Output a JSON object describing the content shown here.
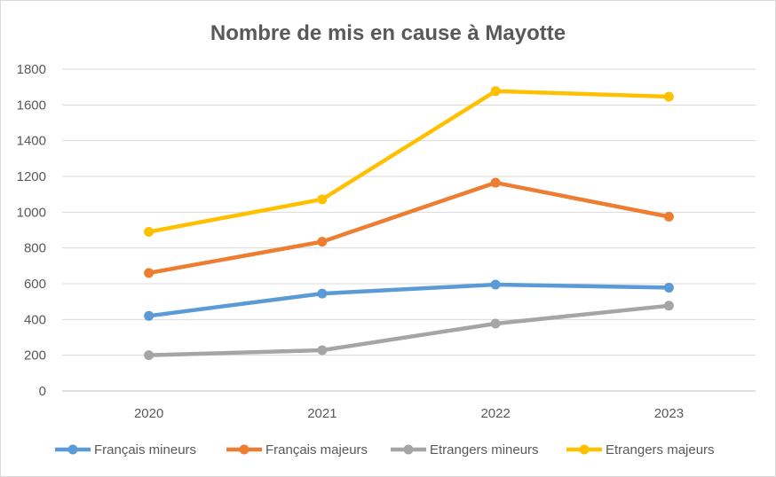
{
  "chart_data": {
    "type": "line",
    "title": "Nombre de mis en cause à Mayotte",
    "categories": [
      "2020",
      "2021",
      "2022",
      "2023"
    ],
    "ylim": [
      0,
      1800
    ],
    "yticks": [
      "0",
      "200",
      "400",
      "600",
      "800",
      "1000",
      "1200",
      "1400",
      "1600",
      "1800"
    ],
    "grid": true,
    "legend_position": "bottom",
    "series": [
      {
        "name": "Français mineurs",
        "color": "#5b9bd5",
        "values": [
          420,
          545,
          595,
          578
        ]
      },
      {
        "name": "Français majeurs",
        "color": "#ed7d31",
        "values": [
          660,
          835,
          1165,
          975
        ]
      },
      {
        "name": "Etrangers mineurs",
        "color": "#a5a5a5",
        "values": [
          200,
          228,
          377,
          477
        ]
      },
      {
        "name": "Etrangers majeurs",
        "color": "#ffc000",
        "values": [
          890,
          1072,
          1677,
          1646
        ]
      }
    ]
  }
}
